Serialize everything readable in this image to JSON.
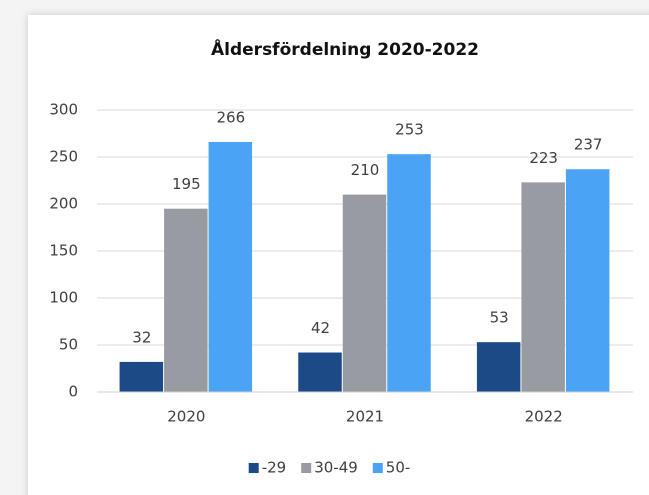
{
  "chart_data": {
    "type": "bar",
    "title": "Åldersfördelning 2020-2022",
    "categories": [
      "2020",
      "2021",
      "2022"
    ],
    "series": [
      {
        "name": "-29",
        "color": "#1b4a87",
        "values": [
          32,
          42,
          53
        ]
      },
      {
        "name": "30-49",
        "color": "#999ba2",
        "values": [
          195,
          210,
          223
        ]
      },
      {
        "name": "50-",
        "color": "#4aa3f5",
        "values": [
          266,
          253,
          237
        ]
      }
    ],
    "ylim": [
      0,
      300
    ],
    "yticks": [
      0,
      50,
      100,
      150,
      200,
      250,
      300
    ],
    "grid": true,
    "legend": "bottom"
  }
}
